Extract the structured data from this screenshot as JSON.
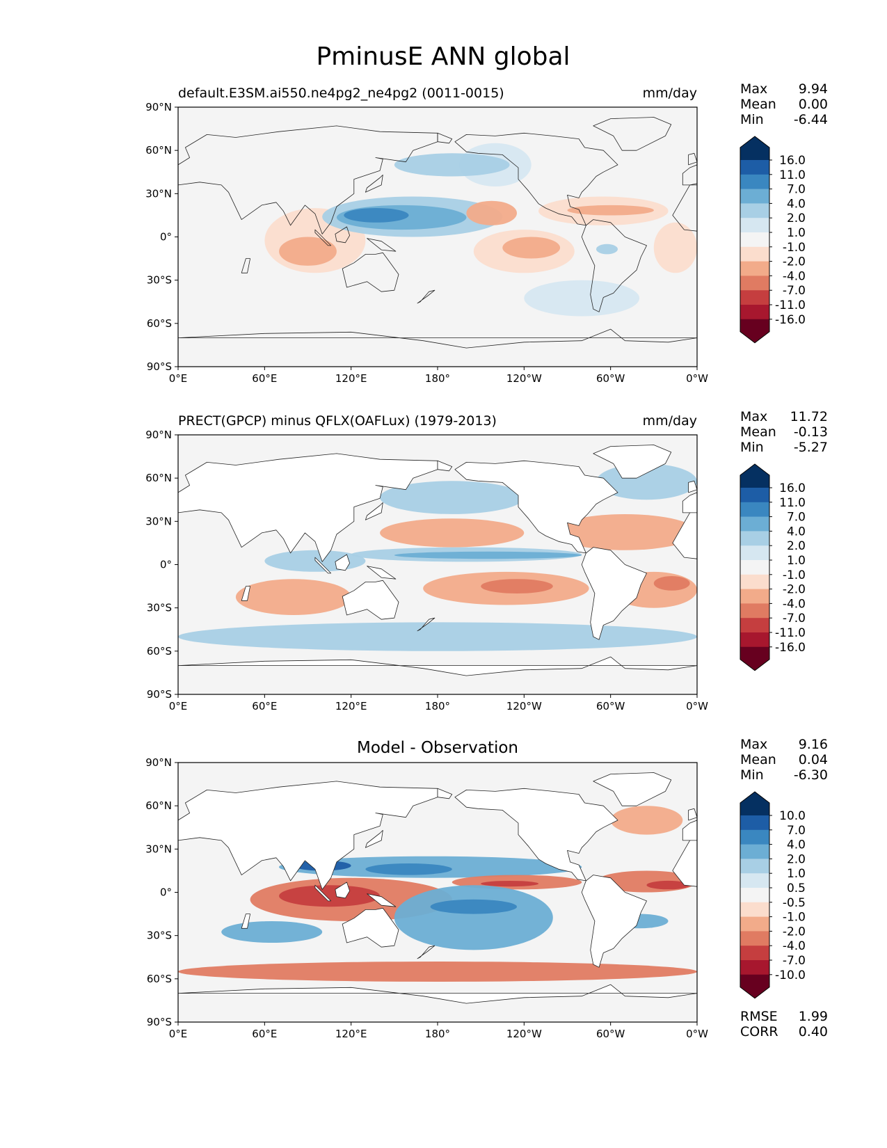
{
  "figure": {
    "title": "PminusE ANN global"
  },
  "axes": {
    "lat_labels": [
      "90°N",
      "60°N",
      "30°N",
      "0°",
      "30°S",
      "60°S",
      "90°S"
    ],
    "lon_labels": [
      "0°E",
      "60°E",
      "120°E",
      "180°",
      "120°W",
      "60°W",
      "0°W"
    ]
  },
  "panels": [
    {
      "id": "test",
      "title_left": "default.E3SM.ai550.ne4pg2_ne4pg2 (0011-0015)",
      "title_center": "",
      "units": "mm/day",
      "stats": [
        {
          "label": "Max",
          "value": "9.94"
        },
        {
          "label": "Mean",
          "value": "0.00"
        },
        {
          "label": "Min",
          "value": "-6.44"
        }
      ],
      "colorbar_labels": [
        "16.0",
        "11.0",
        "7.0",
        "4.0",
        "2.0",
        "1.0",
        "-1.0",
        "-2.0",
        "-4.0",
        "-7.0",
        "-11.0",
        "-16.0"
      ],
      "footer": []
    },
    {
      "id": "reference",
      "title_left": "PRECT(GPCP) minus QFLX(OAFLux) (1979-2013)",
      "title_center": "",
      "units": "mm/day",
      "stats": [
        {
          "label": "Max",
          "value": "11.72"
        },
        {
          "label": "Mean",
          "value": "-0.13"
        },
        {
          "label": "Min",
          "value": "-5.27"
        }
      ],
      "colorbar_labels": [
        "16.0",
        "11.0",
        "7.0",
        "4.0",
        "2.0",
        "1.0",
        "-1.0",
        "-2.0",
        "-4.0",
        "-7.0",
        "-11.0",
        "-16.0"
      ],
      "footer": []
    },
    {
      "id": "diff",
      "title_left": "",
      "title_center": "Model - Observation",
      "units": "",
      "stats": [
        {
          "label": "Max",
          "value": "9.16"
        },
        {
          "label": "Mean",
          "value": "0.04"
        },
        {
          "label": "Min",
          "value": "-6.30"
        }
      ],
      "colorbar_labels": [
        "10.0",
        "7.0",
        "4.0",
        "2.0",
        "1.0",
        "0.5",
        "-0.5",
        "-1.0",
        "-2.0",
        "-4.0",
        "-7.0",
        "-10.0"
      ],
      "footer": [
        {
          "label": "RMSE",
          "value": "1.99"
        },
        {
          "label": "CORR",
          "value": "0.40"
        }
      ]
    }
  ],
  "colors": {
    "colorbar": [
      "#053061",
      "#1d5da6",
      "#3a87c0",
      "#6caed4",
      "#a8cfe5",
      "#d6e7f1",
      "#f4f4f4",
      "#fbddcd",
      "#f2ab8a",
      "#e07b62",
      "#c53e3f",
      "#a7172e",
      "#67001f"
    ],
    "land": "#ffffff",
    "ocean_neutral": "#f4f4f4",
    "coast": "#222222"
  },
  "chart_data": {
    "type": "heatmap",
    "title": "PminusE ANN global",
    "projection": "equirectangular",
    "lon_range": [
      0,
      360
    ],
    "lat_range": [
      -90,
      90
    ],
    "units": "mm/day",
    "panels": [
      {
        "name": "default.E3SM.ai550.ne4pg2_ne4pg2 (0011-0015)",
        "levels": [
          -16,
          -11,
          -7,
          -4,
          -2,
          -1,
          1,
          2,
          4,
          7,
          11,
          16
        ],
        "stats": {
          "max": 9.94,
          "mean": 0.0,
          "min": -6.44
        },
        "regions": [
          {
            "lon": [
              195,
              245
            ],
            "lat": [
              35,
              65
            ],
            "value": 1.5
          },
          {
            "lon": [
              150,
              230
            ],
            "lat": [
              42,
              58
            ],
            "value": 3
          },
          {
            "lon": [
              100,
              225
            ],
            "lat": [
              0,
              28
            ],
            "value": 2.5
          },
          {
            "lon": [
              110,
              200
            ],
            "lat": [
              5,
              22
            ],
            "value": 5
          },
          {
            "lon": [
              115,
              160
            ],
            "lat": [
              10,
              20
            ],
            "value": 8
          },
          {
            "lon": [
              200,
              235
            ],
            "lat": [
              8,
              25
            ],
            "value": -3
          },
          {
            "lon": [
              205,
              275
            ],
            "lat": [
              -25,
              5
            ],
            "value": -2
          },
          {
            "lon": [
              225,
              265
            ],
            "lat": [
              -15,
              0
            ],
            "value": -3
          },
          {
            "lon": [
              60,
              130
            ],
            "lat": [
              -25,
              20
            ],
            "value": -2
          },
          {
            "lon": [
              70,
              110
            ],
            "lat": [
              -20,
              0
            ],
            "value": -3
          },
          {
            "lon": [
              250,
              340
            ],
            "lat": [
              8,
              28
            ],
            "value": -2
          },
          {
            "lon": [
              270,
              330
            ],
            "lat": [
              15,
              22
            ],
            "value": -4
          },
          {
            "lon": [
              330,
              360
            ],
            "lat": [
              -25,
              10
            ],
            "value": -2
          },
          {
            "lon": [
              240,
              320
            ],
            "lat": [
              -55,
              -30
            ],
            "value": 1.5
          },
          {
            "lon": [
              290,
              305
            ],
            "lat": [
              -12,
              -5
            ],
            "value": 3
          }
        ]
      },
      {
        "name": "PRECT(GPCP) minus QFLX(OAFLux) (1979-2013)",
        "levels": [
          -16,
          -11,
          -7,
          -4,
          -2,
          -1,
          1,
          2,
          4,
          7,
          11,
          16
        ],
        "stats": {
          "max": 11.72,
          "mean": -0.13,
          "min": -5.27
        },
        "regions": [
          {
            "lon": [
              140,
              240
            ],
            "lat": [
              35,
              58
            ],
            "value": 3
          },
          {
            "lon": [
              140,
              240
            ],
            "lat": [
              12,
              32
            ],
            "value": -2.5
          },
          {
            "lon": [
              120,
              280
            ],
            "lat": [
              2,
              12
            ],
            "value": 3
          },
          {
            "lon": [
              150,
              280
            ],
            "lat": [
              4,
              9
            ],
            "value": 5
          },
          {
            "lon": [
              170,
              285
            ],
            "lat": [
              -28,
              -5
            ],
            "value": -3
          },
          {
            "lon": [
              210,
              260
            ],
            "lat": [
              -20,
              -10
            ],
            "value": -5
          },
          {
            "lon": [
              260,
              360
            ],
            "lat": [
              10,
              35
            ],
            "value": -2.5
          },
          {
            "lon": [
              300,
              360
            ],
            "lat": [
              -30,
              -5
            ],
            "value": -3
          },
          {
            "lon": [
              330,
              355
            ],
            "lat": [
              -18,
              -8
            ],
            "value": -5
          },
          {
            "lon": [
              40,
              120
            ],
            "lat": [
              -35,
              -10
            ],
            "value": -3
          },
          {
            "lon": [
              60,
              130
            ],
            "lat": [
              -5,
              10
            ],
            "value": 2.5
          },
          {
            "lon": [
              0,
              360
            ],
            "lat": [
              -60,
              -40
            ],
            "value": 2
          },
          {
            "lon": [
              290,
              360
            ],
            "lat": [
              45,
              70
            ],
            "value": 2.5
          }
        ]
      },
      {
        "name": "Model - Observation",
        "levels": [
          -10,
          -7,
          -4,
          -2,
          -1,
          -0.5,
          0.5,
          1,
          2,
          4,
          7,
          10
        ],
        "stats": {
          "max": 9.16,
          "mean": 0.04,
          "min": -6.3,
          "rmse": 1.99,
          "corr": 0.4
        },
        "regions": [
          {
            "lon": [
              70,
              280
            ],
            "lat": [
              10,
              25
            ],
            "value": 2.5
          },
          {
            "lon": [
              130,
              190
            ],
            "lat": [
              12,
              20
            ],
            "value": 6
          },
          {
            "lon": [
              80,
              120
            ],
            "lat": [
              15,
              22
            ],
            "value": 8
          },
          {
            "lon": [
              190,
              280
            ],
            "lat": [
              2,
              12
            ],
            "value": -2.5
          },
          {
            "lon": [
              210,
              250
            ],
            "lat": [
              4,
              8
            ],
            "value": -5
          },
          {
            "lon": [
              290,
              360
            ],
            "lat": [
              0,
              15
            ],
            "value": -2.5
          },
          {
            "lon": [
              325,
              355
            ],
            "lat": [
              2,
              8
            ],
            "value": -5
          },
          {
            "lon": [
              50,
              190
            ],
            "lat": [
              -20,
              10
            ],
            "value": -2.5
          },
          {
            "lon": [
              70,
              140
            ],
            "lat": [
              -10,
              5
            ],
            "value": -5
          },
          {
            "lon": [
              150,
              260
            ],
            "lat": [
              -40,
              5
            ],
            "value": 2.5
          },
          {
            "lon": [
              175,
              235
            ],
            "lat": [
              -15,
              -5
            ],
            "value": 5
          },
          {
            "lon": [
              30,
              100
            ],
            "lat": [
              -35,
              -20
            ],
            "value": 2.5
          },
          {
            "lon": [
              0,
              360
            ],
            "lat": [
              -62,
              -48
            ],
            "value": -2.5
          },
          {
            "lon": [
              300,
              340
            ],
            "lat": [
              -25,
              -15
            ],
            "value": 3.5
          },
          {
            "lon": [
              300,
              350
            ],
            "lat": [
              40,
              60
            ],
            "value": -2
          }
        ]
      }
    ]
  }
}
